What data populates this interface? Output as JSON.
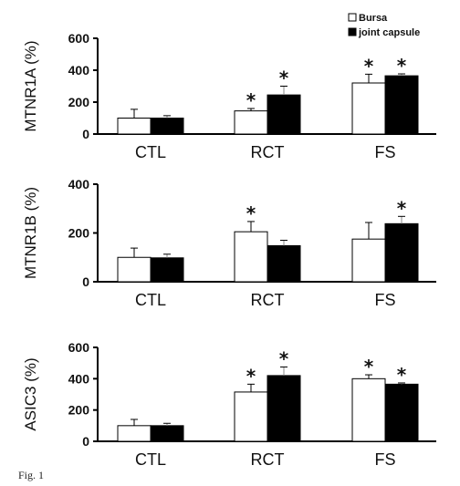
{
  "figure": {
    "caption": "Fig. 1"
  },
  "legend": [
    {
      "label": "Bursa",
      "color": "#ffffff"
    },
    {
      "label": "joint capsule",
      "color": "#000000"
    }
  ],
  "chart_data": [
    {
      "type": "bar",
      "ylabel": "MTNR1A (%)",
      "ylim": [
        0,
        600
      ],
      "yticks": [
        0,
        200,
        400,
        600
      ],
      "categories": [
        "CTL",
        "RCT",
        "FS"
      ],
      "series": [
        {
          "name": "Bursa",
          "color": "#ffffff",
          "values": [
            100,
            145,
            320
          ],
          "errors": [
            55,
            15,
            55
          ],
          "significant": [
            false,
            true,
            true
          ]
        },
        {
          "name": "joint capsule",
          "color": "#000000",
          "values": [
            100,
            245,
            365
          ],
          "errors": [
            15,
            55,
            12
          ],
          "significant": [
            false,
            true,
            true
          ]
        }
      ],
      "annotation_symbol": "*",
      "grid": false
    },
    {
      "type": "bar",
      "ylabel": "MTNR1B (%)",
      "ylim": [
        0,
        400
      ],
      "yticks": [
        0,
        200,
        400
      ],
      "categories": [
        "CTL",
        "RCT",
        "FS"
      ],
      "series": [
        {
          "name": "Bursa",
          "color": "#ffffff",
          "values": [
            100,
            205,
            175
          ],
          "errors": [
            38,
            42,
            68
          ],
          "significant": [
            false,
            true,
            false
          ]
        },
        {
          "name": "joint capsule",
          "color": "#000000",
          "values": [
            98,
            148,
            238
          ],
          "errors": [
            15,
            22,
            30
          ],
          "significant": [
            false,
            false,
            true
          ]
        }
      ],
      "annotation_symbol": "*",
      "grid": false
    },
    {
      "type": "bar",
      "ylabel": "ASIC3 (%)",
      "ylim": [
        0,
        600
      ],
      "yticks": [
        0,
        200,
        400,
        600
      ],
      "categories": [
        "CTL",
        "RCT",
        "FS"
      ],
      "series": [
        {
          "name": "Bursa",
          "color": "#ffffff",
          "values": [
            100,
            315,
            400
          ],
          "errors": [
            40,
            50,
            25
          ],
          "significant": [
            false,
            true,
            true
          ]
        },
        {
          "name": "joint capsule",
          "color": "#000000",
          "values": [
            100,
            420,
            365
          ],
          "errors": [
            15,
            55,
            8
          ],
          "significant": [
            false,
            true,
            true
          ]
        }
      ],
      "annotation_symbol": "*",
      "grid": false
    }
  ]
}
